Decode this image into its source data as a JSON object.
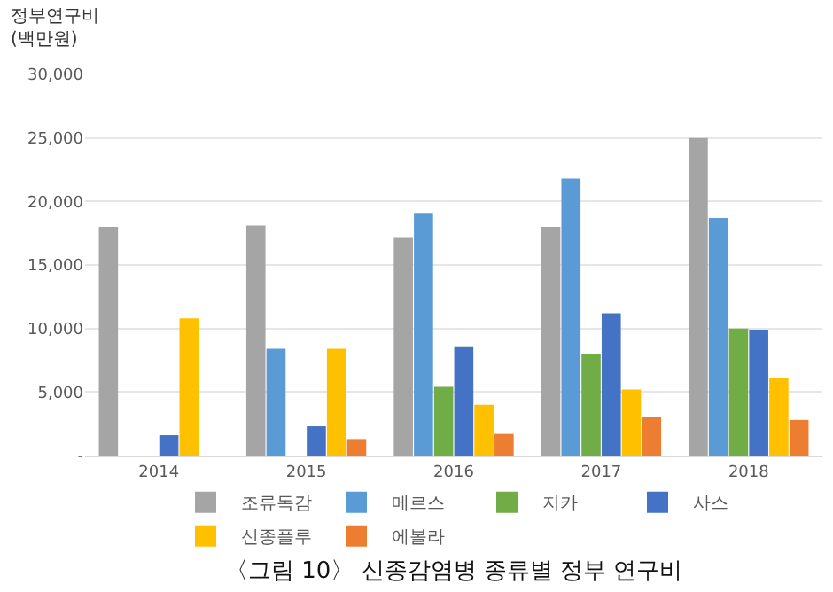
{
  "chart_data": {
    "type": "bar",
    "title": "〈그림 10〉 신종감염병 종류별 정부 연구비",
    "ylabel": "정부연구비\n(백만원)",
    "categories": [
      "2014",
      "2015",
      "2016",
      "2017",
      "2018"
    ],
    "series": [
      {
        "name": "조류독감",
        "color": "#a5a5a5",
        "values": [
          18000,
          18100,
          17200,
          18000,
          25000
        ]
      },
      {
        "name": "메르스",
        "color": "#5b9bd5",
        "values": [
          null,
          8400,
          19100,
          21800,
          18700
        ]
      },
      {
        "name": "지카",
        "color": "#70ad47",
        "values": [
          null,
          null,
          5400,
          8000,
          10000
        ]
      },
      {
        "name": "사스",
        "color": "#4472c4",
        "values": [
          1600,
          2300,
          8600,
          11200,
          9900
        ]
      },
      {
        "name": "신종플루",
        "color": "#ffc000",
        "values": [
          10800,
          8400,
          4000,
          5200,
          6100
        ]
      },
      {
        "name": "에볼라",
        "color": "#ed7d31",
        "values": [
          null,
          1300,
          1700,
          3000,
          2800
        ]
      }
    ],
    "ylim": [
      0,
      30000
    ],
    "yticks": [
      {
        "value": 0,
        "label": "-"
      },
      {
        "value": 5000,
        "label": "5,000"
      },
      {
        "value": 10000,
        "label": "10,000"
      },
      {
        "value": 15000,
        "label": "15,000"
      },
      {
        "value": 20000,
        "label": "20,000"
      },
      {
        "value": 25000,
        "label": "25,000"
      },
      {
        "value": 30000,
        "label": "30,000"
      }
    ],
    "grid": "y",
    "legend": "bottom"
  }
}
